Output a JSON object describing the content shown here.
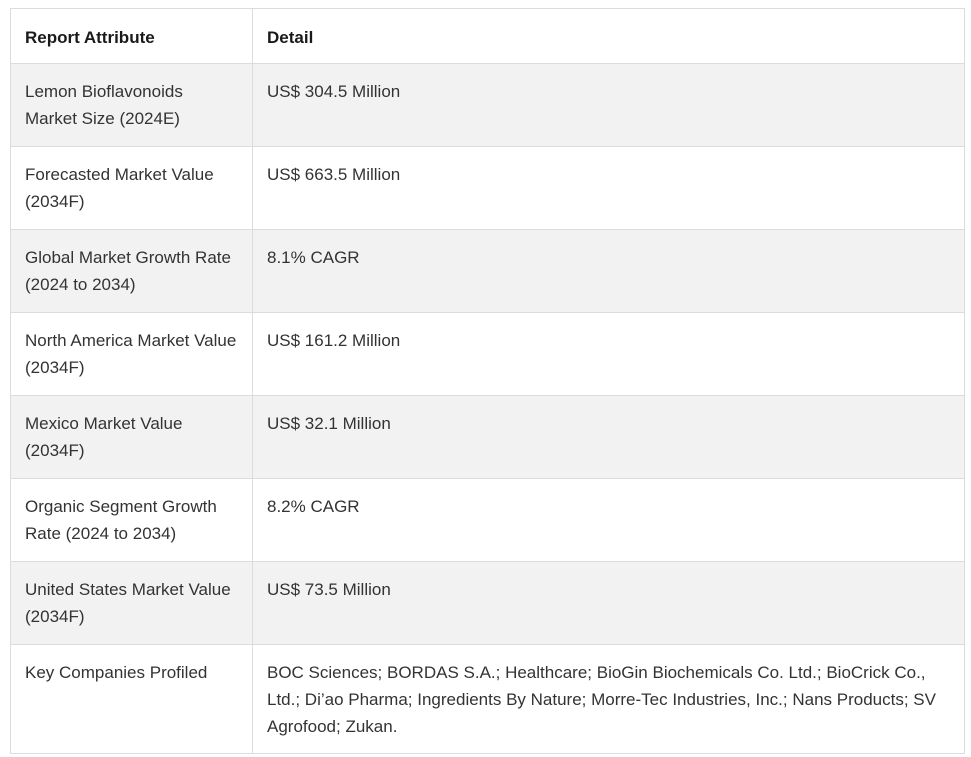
{
  "table": {
    "headers": [
      "Report Attribute",
      "Detail"
    ],
    "rows": [
      {
        "attribute": "Lemon Bioflavonoids Market Size (2024E)",
        "detail": "US$ 304.5 Million"
      },
      {
        "attribute": "Forecasted Market Value (2034F)",
        "detail": "US$ 663.5 Million"
      },
      {
        "attribute": "Global Market Growth Rate (2024 to 2034)",
        "detail": "8.1% CAGR"
      },
      {
        "attribute": "North America Market Value (2034F)",
        "detail": "US$ 161.2 Million"
      },
      {
        "attribute": "Mexico Market Value (2034F)",
        "detail": "US$ 32.1 Million"
      },
      {
        "attribute": "Organic Segment Growth Rate (2024 to 2034)",
        "detail": "8.2% CAGR"
      },
      {
        "attribute": "United States Market Value (2034F)",
        "detail": "US$ 73.5 Million"
      },
      {
        "attribute": "Key Companies Profiled",
        "detail": "BOC Sciences; BORDAS S.A.; Healthcare; BioGin Biochemicals Co. Ltd.; BioCrick Co., Ltd.; Di’ao Pharma; Ingredients By Nature; Morre-Tec Industries, Inc.; Nans Products; SV Agrofood; Zukan."
      }
    ]
  }
}
